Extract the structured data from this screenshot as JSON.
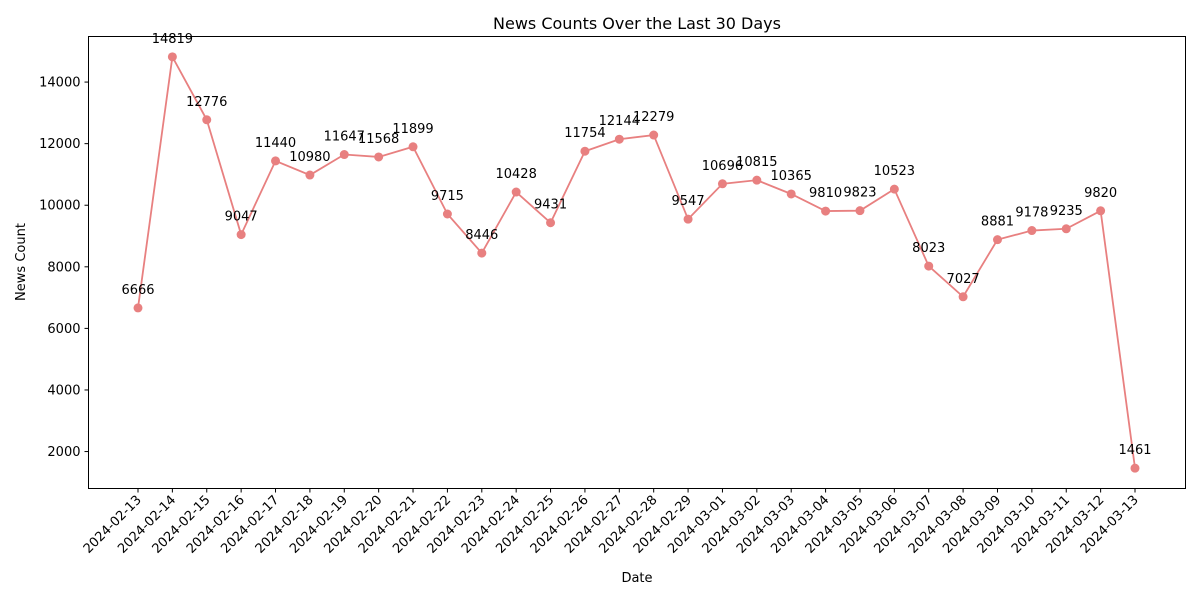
{
  "chart_data": {
    "type": "line",
    "title": "News Counts Over the Last 30 Days",
    "xlabel": "Date",
    "ylabel": "News Count",
    "x": [
      "2024-02-13",
      "2024-02-14",
      "2024-02-15",
      "2024-02-16",
      "2024-02-17",
      "2024-02-18",
      "2024-02-19",
      "2024-02-20",
      "2024-02-21",
      "2024-02-22",
      "2024-02-23",
      "2024-02-24",
      "2024-02-25",
      "2024-02-26",
      "2024-02-27",
      "2024-02-28",
      "2024-02-29",
      "2024-03-01",
      "2024-03-02",
      "2024-03-03",
      "2024-03-04",
      "2024-03-05",
      "2024-03-06",
      "2024-03-07",
      "2024-03-08",
      "2024-03-09",
      "2024-03-10",
      "2024-03-11",
      "2024-03-12",
      "2024-03-13"
    ],
    "values": [
      6666,
      14819,
      12776,
      9047,
      11440,
      10980,
      11647,
      11568,
      11899,
      9715,
      8446,
      10428,
      9431,
      11754,
      12144,
      12279,
      9547,
      10696,
      10815,
      10365,
      9810,
      9823,
      10523,
      8023,
      7027,
      8881,
      9178,
      9235,
      9820,
      1461
    ],
    "yticks": [
      2000,
      4000,
      6000,
      8000,
      10000,
      12000,
      14000
    ],
    "ylim": [
      800,
      15480
    ],
    "line_color": "#e88080",
    "marker_color": "#e88080",
    "grid": false,
    "legend": "none",
    "data_labels": true
  }
}
